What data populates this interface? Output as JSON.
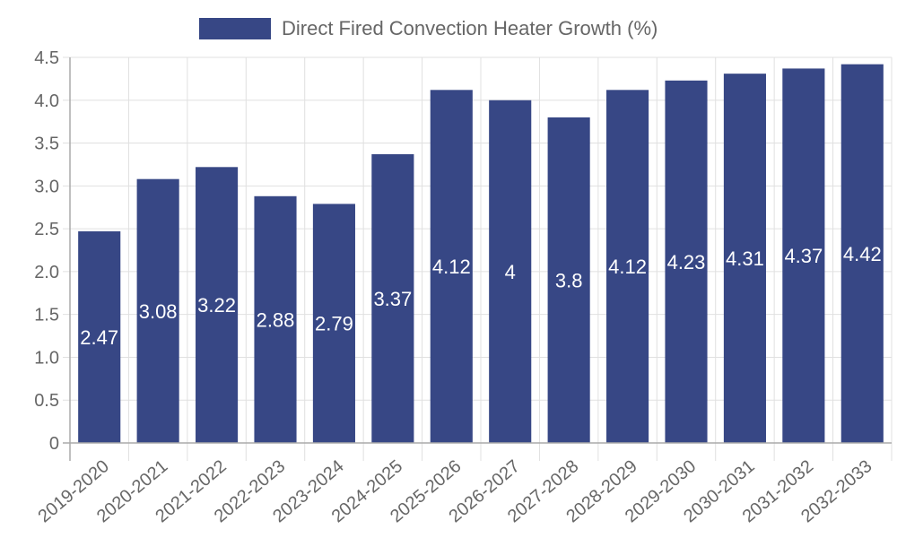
{
  "legend": {
    "label": "Direct Fired Convection Heater Growth (%)",
    "color": "#374785"
  },
  "colors": {
    "bar": "#374785",
    "grid": "#e0e0e0",
    "axis": "#aaaaaa",
    "tick_text": "#666666",
    "bar_label": "#ffffff"
  },
  "chart_data": {
    "type": "bar",
    "title": "",
    "xlabel": "",
    "ylabel": "",
    "ylim": [
      0,
      4.5
    ],
    "yticks": [
      0,
      0.5,
      1.0,
      1.5,
      2.0,
      2.5,
      3.0,
      3.5,
      4.0,
      4.5
    ],
    "ytick_labels": [
      "0",
      "0.5",
      "1.0",
      "1.5",
      "2.0",
      "2.5",
      "3.0",
      "3.5",
      "4.0",
      "4.5"
    ],
    "grid": true,
    "legend_position": "top",
    "categories": [
      "2019-2020",
      "2020-2021",
      "2021-2022",
      "2022-2023",
      "2023-2024",
      "2024-2025",
      "2025-2026",
      "2026-2027",
      "2027-2028",
      "2028-2029",
      "2029-2030",
      "2030-2031",
      "2031-2032",
      "2032-2033"
    ],
    "series": [
      {
        "name": "Direct Fired Convection Heater Growth (%)",
        "values": [
          2.47,
          3.08,
          3.22,
          2.88,
          2.79,
          3.37,
          4.12,
          4,
          3.8,
          4.12,
          4.23,
          4.31,
          4.37,
          4.42
        ],
        "labels": [
          "2.47",
          "3.08",
          "3.22",
          "2.88",
          "2.79",
          "3.37",
          "4.12",
          "4",
          "3.8",
          "4.12",
          "4.23",
          "4.31",
          "4.37",
          "4.42"
        ]
      }
    ]
  }
}
